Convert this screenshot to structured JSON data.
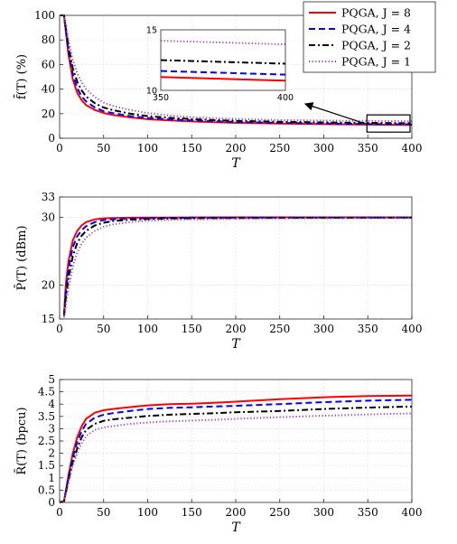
{
  "chart_data": [
    {
      "type": "line",
      "xlabel": "T",
      "ylabel": "f̄(T) (%)",
      "xlim": [
        0,
        400
      ],
      "ylim": [
        0,
        100
      ],
      "xticks": [
        "0",
        "50",
        "100",
        "150",
        "200",
        "250",
        "300",
        "350",
        "400"
      ],
      "yticks": [
        "0",
        "20",
        "40",
        "60",
        "80",
        "100"
      ],
      "grid": true,
      "legend": "top-right",
      "x": [
        0,
        5,
        10,
        15,
        20,
        25,
        30,
        40,
        50,
        60,
        80,
        100,
        125,
        150,
        175,
        200,
        250,
        300,
        350,
        400
      ],
      "series": [
        {
          "name": "PQGA, J = 8",
          "color": "#ff0000",
          "dash": "solid",
          "values": [
            100,
            100,
            68,
            48,
            37,
            31,
            27,
            23,
            20.5,
            19,
            17,
            15.5,
            14.5,
            13.7,
            13.1,
            12.6,
            12,
            11.5,
            11.1,
            10.8
          ]
        },
        {
          "name": "PQGA, J = 4",
          "color": "#0000ff",
          "dash": "dashed",
          "values": [
            100,
            100,
            71,
            52,
            41,
            34,
            30,
            25,
            22,
            20.5,
            18,
            16.5,
            15.3,
            14.5,
            13.8,
            13.2,
            12.5,
            12,
            11.6,
            11.3
          ]
        },
        {
          "name": "PQGA, J = 2",
          "color": "#000000",
          "dash": "dashdot",
          "values": [
            100,
            100,
            75,
            57,
            46,
            39,
            34,
            28.5,
            25,
            23,
            20,
            18,
            16.6,
            15.6,
            14.8,
            14.2,
            13.4,
            12.9,
            12.5,
            12.2
          ]
        },
        {
          "name": "PQGA, J = 1",
          "color": "#a040c0",
          "dash": "dotted",
          "values": [
            100,
            100,
            80,
            64,
            53,
            45.5,
            40,
            33.5,
            29,
            26.5,
            23,
            20.5,
            18.5,
            17.2,
            16.3,
            15.7,
            14.8,
            14.4,
            14.1,
            13.8
          ]
        }
      ],
      "inset": {
        "xlim": [
          350,
          400
        ],
        "ylim": [
          10,
          15
        ],
        "xticks": [
          "350",
          "400"
        ],
        "yticks": [
          "10",
          "15"
        ]
      }
    },
    {
      "type": "line",
      "xlabel": "T",
      "ylabel": "P̄(T) (dBm)",
      "xlim": [
        0,
        400
      ],
      "ylim": [
        15,
        33
      ],
      "xticks": [
        "0",
        "50",
        "100",
        "150",
        "200",
        "250",
        "300",
        "350",
        "400"
      ],
      "yticks": [
        "15",
        "20",
        "30",
        "33"
      ],
      "grid": true,
      "x": [
        5,
        7,
        10,
        15,
        20,
        25,
        30,
        40,
        50,
        60,
        80,
        100,
        125,
        150,
        200,
        250,
        300,
        350,
        400
      ],
      "series": [
        {
          "name": "PQGA, J = 8",
          "color": "#ff0000",
          "dash": "solid",
          "values": [
            15.5,
            20,
            23.5,
            26.6,
            28,
            28.8,
            29.3,
            29.7,
            29.85,
            29.9,
            29.95,
            29.97,
            29.98,
            29.99,
            30,
            30,
            30,
            30,
            30
          ]
        },
        {
          "name": "PQGA, J = 4",
          "color": "#0000ff",
          "dash": "dashed",
          "values": [
            15.5,
            19,
            22.5,
            25.6,
            27.2,
            28.1,
            28.7,
            29.3,
            29.6,
            29.72,
            29.82,
            29.88,
            29.92,
            29.94,
            29.96,
            29.97,
            29.98,
            29.98,
            29.98
          ]
        },
        {
          "name": "PQGA, J = 2",
          "color": "#000000",
          "dash": "dashdot",
          "values": [
            15.5,
            18,
            21,
            24.3,
            26.2,
            27.3,
            28,
            28.8,
            29.2,
            29.45,
            29.65,
            29.75,
            29.82,
            29.86,
            29.9,
            29.92,
            29.93,
            29.94,
            29.95
          ]
        },
        {
          "name": "PQGA, J = 1",
          "color": "#a040c0",
          "dash": "dotted",
          "values": [
            15.2,
            17,
            19.5,
            22.7,
            24.8,
            26.1,
            27,
            28,
            28.6,
            28.95,
            29.3,
            29.5,
            29.62,
            29.7,
            29.78,
            29.83,
            29.86,
            29.88,
            29.9
          ]
        }
      ]
    },
    {
      "type": "line",
      "xlabel": "T",
      "ylabel": "R̄(T) (bpcu)",
      "xlim": [
        0,
        400
      ],
      "ylim": [
        0,
        5
      ],
      "xticks": [
        "0",
        "50",
        "100",
        "150",
        "200",
        "250",
        "300",
        "350",
        "400"
      ],
      "yticks": [
        "0",
        "0.5",
        "1",
        "1.5",
        "2",
        "2.5",
        "3",
        "3.5",
        "4",
        "4.5",
        "5"
      ],
      "grid": true,
      "x": [
        0,
        5,
        10,
        15,
        20,
        25,
        30,
        40,
        50,
        60,
        80,
        100,
        125,
        150,
        175,
        200,
        250,
        300,
        350,
        400
      ],
      "series": [
        {
          "name": "PQGA, J = 8",
          "color": "#ff0000",
          "dash": "solid",
          "values": [
            0,
            0.05,
            1.1,
            2.0,
            2.65,
            3.1,
            3.4,
            3.65,
            3.75,
            3.8,
            3.88,
            3.95,
            4.0,
            4.02,
            4.05,
            4.1,
            4.2,
            4.28,
            4.33,
            4.35
          ]
        },
        {
          "name": "PQGA, J = 4",
          "color": "#0000ff",
          "dash": "dashed",
          "values": [
            0,
            0.05,
            1.0,
            1.85,
            2.45,
            2.9,
            3.2,
            3.45,
            3.57,
            3.63,
            3.72,
            3.8,
            3.85,
            3.87,
            3.9,
            3.93,
            4.0,
            4.08,
            4.14,
            4.18
          ]
        },
        {
          "name": "PQGA, J = 2",
          "color": "#000000",
          "dash": "dashdot",
          "values": [
            0,
            0.05,
            0.9,
            1.65,
            2.2,
            2.65,
            2.95,
            3.2,
            3.32,
            3.38,
            3.45,
            3.52,
            3.57,
            3.6,
            3.63,
            3.67,
            3.72,
            3.8,
            3.86,
            3.9
          ]
        },
        {
          "name": "PQGA, J = 1",
          "color": "#a040c0",
          "dash": "dotted",
          "values": [
            0,
            0.05,
            0.8,
            1.5,
            2.0,
            2.4,
            2.7,
            2.95,
            3.05,
            3.1,
            3.2,
            3.25,
            3.3,
            3.33,
            3.36,
            3.4,
            3.47,
            3.53,
            3.58,
            3.62
          ]
        }
      ]
    }
  ]
}
